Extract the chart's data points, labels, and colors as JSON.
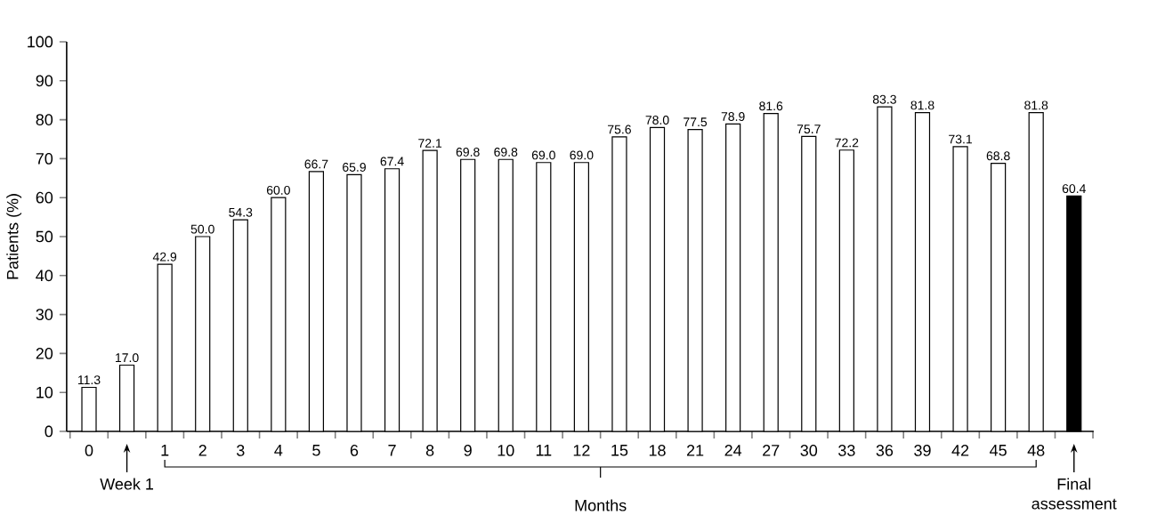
{
  "chart_data": {
    "type": "bar",
    "categories": [
      "0",
      null,
      "1",
      "2",
      "3",
      "4",
      "5",
      "6",
      "7",
      "8",
      "9",
      "10",
      "11",
      "12",
      "15",
      "18",
      "21",
      "24",
      "27",
      "30",
      "33",
      "36",
      "39",
      "42",
      "45",
      "48",
      null
    ],
    "values": [
      11.3,
      17.0,
      42.9,
      50.0,
      54.3,
      60.0,
      66.7,
      65.9,
      67.4,
      72.1,
      69.8,
      69.8,
      69.0,
      69.0,
      75.6,
      78.0,
      77.5,
      78.9,
      81.6,
      75.7,
      72.2,
      83.3,
      81.8,
      73.1,
      68.8,
      81.8,
      60.4
    ],
    "value_labels": [
      "11.3",
      "17.0",
      "42.9",
      "50.0",
      "54.3",
      "60.0",
      "66.7",
      "65.9",
      "67.4",
      "72.1",
      "69.8",
      "69.8",
      "69.0",
      "69.0",
      "75.6",
      "78.0",
      "77.5",
      "78.9",
      "81.6",
      "75.7",
      "72.2",
      "83.3",
      "81.8",
      "73.1",
      "68.8",
      "81.8",
      "60.4"
    ],
    "colors": [
      "#ffffff",
      "#ffffff",
      "#ffffff",
      "#ffffff",
      "#ffffff",
      "#ffffff",
      "#ffffff",
      "#ffffff",
      "#ffffff",
      "#ffffff",
      "#ffffff",
      "#ffffff",
      "#ffffff",
      "#ffffff",
      "#ffffff",
      "#ffffff",
      "#ffffff",
      "#ffffff",
      "#ffffff",
      "#ffffff",
      "#ffffff",
      "#ffffff",
      "#ffffff",
      "#ffffff",
      "#ffffff",
      "#ffffff",
      "#000000"
    ],
    "ylabel": "Patients (%)",
    "ylim": [
      0,
      100
    ],
    "yticks": [
      0,
      10,
      20,
      30,
      40,
      50,
      60,
      70,
      80,
      90,
      100
    ],
    "annotations": [
      "Week 1",
      "Months",
      "Final assessment"
    ],
    "grid": false
  }
}
